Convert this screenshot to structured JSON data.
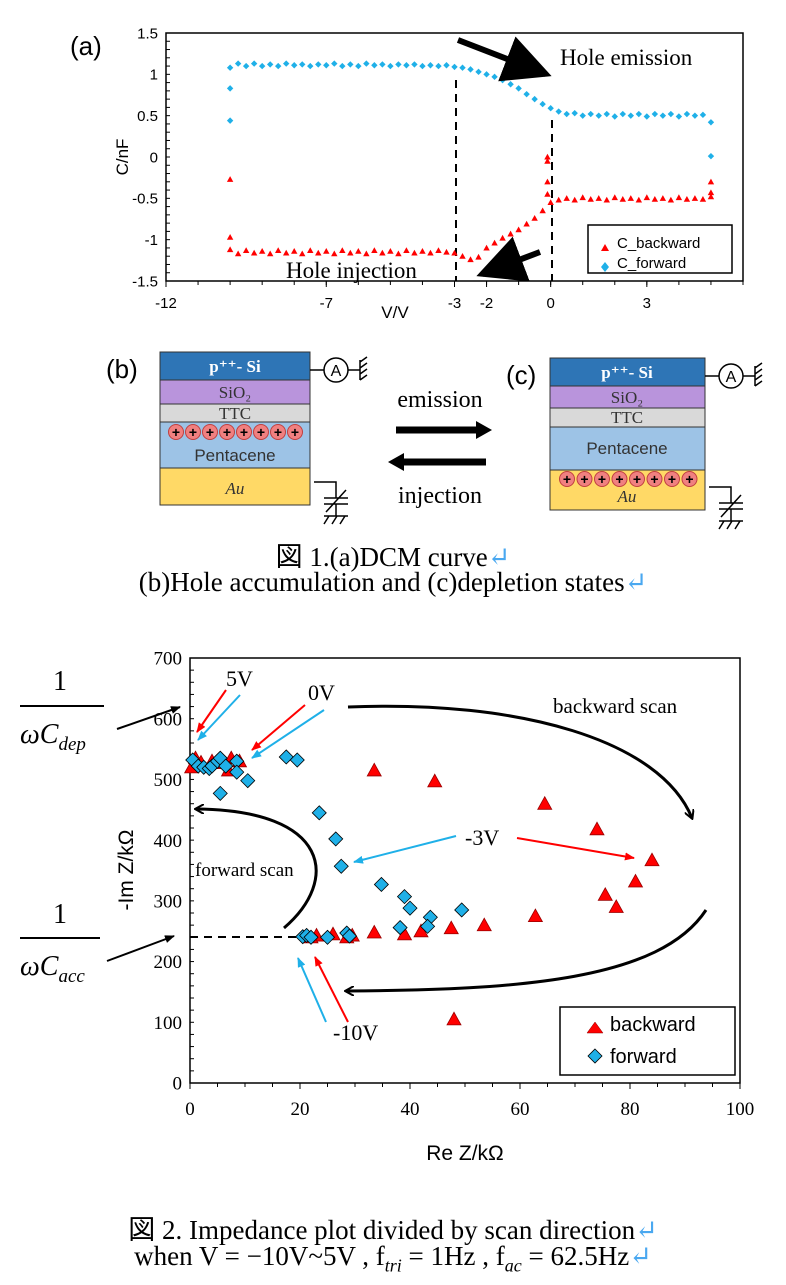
{
  "figure1": {
    "panel_a_label": "(a)",
    "panel_b_label": "(b)",
    "panel_c_label": "(c)",
    "annotation_emission": "Hole emission",
    "annotation_injection": "Hole injection",
    "layers": {
      "si": "p⁺⁺- Si",
      "sio2": "SiO₂",
      "ttc": "TTC",
      "pentacene": "Pentacene",
      "au": "Au",
      "ammeter": "A"
    },
    "layer_colors": {
      "si": "#2E75B6",
      "sio2": "#B994DC",
      "ttc": "#D9D9D9",
      "pentacene": "#9DC3E6",
      "au": "#FFD966",
      "hole": "#F08080"
    },
    "arrow_emission": "emission",
    "arrow_injection": "injection",
    "caption_line1": "図 1.(a)DCM curve",
    "caption_line2": "(b)Hole accumulation and (c)depletion states",
    "return_mark": "↵"
  },
  "figure2": {
    "annotations": {
      "v5": "5V",
      "v0": "0V",
      "v_neg3": "-3V",
      "v_neg10": "-10V",
      "backward_scan": "backward scan",
      "forward_scan": "forward scan",
      "c_dep_num": "1",
      "c_dep_den": "ωC",
      "c_dep_sub": "dep",
      "c_acc_num": "1",
      "c_acc_den": "ωC",
      "c_acc_sub": "acc"
    },
    "caption_line1": "図 2. Impedance plot divided by scan direction",
    "caption_line2": "when  V = −10V~5V , f",
    "caption_tri": "tri",
    "caption_mid": " = 1Hz , f",
    "caption_ac": "ac",
    "caption_end": " = 62.5Hz",
    "return_mark": "↵"
  },
  "chart_data": [
    {
      "type": "scatter",
      "xlabel": "V/V",
      "ylabel": "C/nF",
      "xlim": [
        -12,
        6
      ],
      "ylim": [
        -1.5,
        1.5
      ],
      "xticks": [
        "-12",
        "-7",
        "-3",
        "-2",
        "0",
        "3"
      ],
      "xtick_values": [
        -12,
        -7,
        -3,
        -2,
        0,
        3
      ],
      "yticks": [
        "1.5",
        "1",
        "0.5",
        "0",
        "-0.5",
        "-1",
        "-1.5"
      ],
      "ytick_values": [
        1.5,
        1,
        0.5,
        0,
        -0.5,
        -1,
        -1.5
      ],
      "grid": false,
      "legend_position": "bottom-right",
      "reference_lines_v": [
        -3,
        0
      ],
      "colors": {
        "C_backward": "#FF0000",
        "C_forward": "#1FB0E8"
      },
      "series": [
        {
          "name": "C_backward",
          "marker": "triangle",
          "points": [
            [
              -10,
              -0.27
            ],
            [
              -10,
              -0.97
            ],
            [
              -10,
              -1.12
            ],
            [
              -9.75,
              -1.17
            ],
            [
              -9.5,
              -1.13
            ],
            [
              -9.25,
              -1.16
            ],
            [
              -9,
              -1.14
            ],
            [
              -8.75,
              -1.17
            ],
            [
              -8.5,
              -1.13
            ],
            [
              -8.25,
              -1.16
            ],
            [
              -8,
              -1.14
            ],
            [
              -7.75,
              -1.17
            ],
            [
              -7.5,
              -1.13
            ],
            [
              -7.25,
              -1.16
            ],
            [
              -7,
              -1.14
            ],
            [
              -6.75,
              -1.17
            ],
            [
              -6.5,
              -1.13
            ],
            [
              -6.25,
              -1.16
            ],
            [
              -6,
              -1.14
            ],
            [
              -5.75,
              -1.17
            ],
            [
              -5.5,
              -1.13
            ],
            [
              -5.25,
              -1.16
            ],
            [
              -5,
              -1.14
            ],
            [
              -4.75,
              -1.17
            ],
            [
              -4.5,
              -1.13
            ],
            [
              -4.25,
              -1.16
            ],
            [
              -4,
              -1.14
            ],
            [
              -3.75,
              -1.16
            ],
            [
              -3.5,
              -1.13
            ],
            [
              -3.25,
              -1.15
            ],
            [
              -3,
              -1.16
            ],
            [
              -2.75,
              -1.2
            ],
            [
              -2.5,
              -1.24
            ],
            [
              -2.25,
              -1.21
            ],
            [
              -2,
              -1.1
            ],
            [
              -1.75,
              -1.04
            ],
            [
              -1.5,
              -0.98
            ],
            [
              -1.25,
              -0.93
            ],
            [
              -1,
              -0.88
            ],
            [
              -0.75,
              -0.81
            ],
            [
              -0.5,
              -0.74
            ],
            [
              -0.25,
              -0.65
            ],
            [
              -0.1,
              0
            ],
            [
              -0.1,
              -0.05
            ],
            [
              -0.1,
              -0.3
            ],
            [
              -0.1,
              -0.45
            ],
            [
              0,
              -0.55
            ],
            [
              0.25,
              -0.52
            ],
            [
              0.5,
              -0.5
            ],
            [
              0.75,
              -0.52
            ],
            [
              1,
              -0.49
            ],
            [
              1.25,
              -0.51
            ],
            [
              1.5,
              -0.5
            ],
            [
              1.75,
              -0.52
            ],
            [
              2,
              -0.49
            ],
            [
              2.25,
              -0.51
            ],
            [
              2.5,
              -0.5
            ],
            [
              2.75,
              -0.52
            ],
            [
              3,
              -0.49
            ],
            [
              3.25,
              -0.51
            ],
            [
              3.5,
              -0.5
            ],
            [
              3.75,
              -0.52
            ],
            [
              4,
              -0.49
            ],
            [
              4.25,
              -0.51
            ],
            [
              4.5,
              -0.5
            ],
            [
              4.75,
              -0.51
            ],
            [
              5,
              -0.3
            ],
            [
              5,
              -0.43
            ],
            [
              5,
              -0.48
            ]
          ]
        },
        {
          "name": "C_forward",
          "marker": "diamond",
          "points": [
            [
              -10,
              0.83
            ],
            [
              -10,
              0.44
            ],
            [
              -10,
              1.08
            ],
            [
              -9.75,
              1.13
            ],
            [
              -9.5,
              1.1
            ],
            [
              -9.25,
              1.13
            ],
            [
              -9,
              1.1
            ],
            [
              -8.75,
              1.12
            ],
            [
              -8.5,
              1.1
            ],
            [
              -8.25,
              1.13
            ],
            [
              -8,
              1.11
            ],
            [
              -7.75,
              1.12
            ],
            [
              -7.5,
              1.1
            ],
            [
              -7.25,
              1.12
            ],
            [
              -7,
              1.11
            ],
            [
              -6.75,
              1.13
            ],
            [
              -6.5,
              1.1
            ],
            [
              -6.25,
              1.12
            ],
            [
              -6,
              1.1
            ],
            [
              -5.75,
              1.13
            ],
            [
              -5.5,
              1.11
            ],
            [
              -5.25,
              1.12
            ],
            [
              -5,
              1.1
            ],
            [
              -4.75,
              1.12
            ],
            [
              -4.5,
              1.11
            ],
            [
              -4.25,
              1.12
            ],
            [
              -4,
              1.1
            ],
            [
              -3.75,
              1.11
            ],
            [
              -3.5,
              1.1
            ],
            [
              -3.25,
              1.11
            ],
            [
              -3,
              1.09
            ],
            [
              -2.75,
              1.08
            ],
            [
              -2.5,
              1.06
            ],
            [
              -2.25,
              1.03
            ],
            [
              -2,
              1.0
            ],
            [
              -1.75,
              0.97
            ],
            [
              -1.5,
              0.93
            ],
            [
              -1.25,
              0.88
            ],
            [
              -1,
              0.83
            ],
            [
              -0.75,
              0.76
            ],
            [
              -0.5,
              0.7
            ],
            [
              -0.25,
              0.64
            ],
            [
              0,
              0.59
            ],
            [
              0.25,
              0.55
            ],
            [
              0.5,
              0.52
            ],
            [
              0.75,
              0.53
            ],
            [
              1,
              0.5
            ],
            [
              1.25,
              0.52
            ],
            [
              1.5,
              0.5
            ],
            [
              1.75,
              0.52
            ],
            [
              2,
              0.49
            ],
            [
              2.25,
              0.52
            ],
            [
              2.5,
              0.5
            ],
            [
              2.75,
              0.52
            ],
            [
              3,
              0.49
            ],
            [
              3.25,
              0.52
            ],
            [
              3.5,
              0.5
            ],
            [
              3.75,
              0.52
            ],
            [
              4,
              0.49
            ],
            [
              4.25,
              0.52
            ],
            [
              4.5,
              0.5
            ],
            [
              4.75,
              0.51
            ],
            [
              5,
              0.42
            ],
            [
              5,
              0.01
            ]
          ]
        }
      ]
    },
    {
      "type": "scatter",
      "xlabel": "Re Z/kΩ",
      "ylabel": "-Im Z/kΩ",
      "xlim": [
        0,
        100
      ],
      "ylim": [
        0,
        700
      ],
      "xticks": [
        "0",
        "20",
        "40",
        "60",
        "80",
        "100"
      ],
      "xtick_values": [
        0,
        20,
        40,
        60,
        80,
        100
      ],
      "yticks": [
        "700",
        "600",
        "500",
        "400",
        "300",
        "200",
        "100",
        "0"
      ],
      "ytick_values": [
        700,
        600,
        500,
        400,
        300,
        200,
        100,
        0
      ],
      "grid": false,
      "legend_position": "bottom-right",
      "colors": {
        "backward": "#FF0000",
        "forward": "#1FB0E8"
      },
      "series": [
        {
          "name": "backward",
          "marker": "triangle",
          "points": [
            [
              0.3,
              520
            ],
            [
              1,
              535
            ],
            [
              2,
              528
            ],
            [
              4,
              530
            ],
            [
              5,
              527
            ],
            [
              7,
              515
            ],
            [
              7.5,
              535
            ],
            [
              9,
              530
            ],
            [
              33.5,
              515
            ],
            [
              44.5,
              497
            ],
            [
              64.5,
              460
            ],
            [
              74,
              418
            ],
            [
              84,
              367
            ],
            [
              81,
              332
            ],
            [
              75.5,
              310
            ],
            [
              77.5,
              290
            ],
            [
              62.8,
              275
            ],
            [
              53.5,
              260
            ],
            [
              47.5,
              255
            ],
            [
              42,
              250
            ],
            [
              39,
              245
            ],
            [
              33.5,
              248
            ],
            [
              29.5,
              243
            ],
            [
              26,
              245
            ],
            [
              23,
              243
            ],
            [
              22,
              240
            ],
            [
              28.5,
              240
            ],
            [
              48,
              105
            ]
          ]
        },
        {
          "name": "forward",
          "marker": "diamond",
          "points": [
            [
              0.5,
              532
            ],
            [
              1.5,
              522
            ],
            [
              2.5,
              520
            ],
            [
              3.5,
              518
            ],
            [
              4,
              522
            ],
            [
              5,
              530
            ],
            [
              5.5,
              535
            ],
            [
              6.5,
              522
            ],
            [
              8.5,
              530
            ],
            [
              8.5,
              512
            ],
            [
              10.5,
              498
            ],
            [
              5.5,
              477
            ],
            [
              17.5,
              537
            ],
            [
              19.5,
              532
            ],
            [
              23.5,
              445
            ],
            [
              26.5,
              402
            ],
            [
              27.5,
              357
            ],
            [
              34.8,
              327
            ],
            [
              39,
              307
            ],
            [
              40,
              288
            ],
            [
              43.7,
              273
            ],
            [
              49.4,
              285
            ],
            [
              38.2,
              256
            ],
            [
              43.2,
              258
            ],
            [
              20.5,
              241
            ],
            [
              21.2,
              243
            ],
            [
              22,
              240
            ],
            [
              25,
              240
            ],
            [
              28.5,
              247
            ],
            [
              29,
              242
            ]
          ]
        }
      ]
    }
  ]
}
